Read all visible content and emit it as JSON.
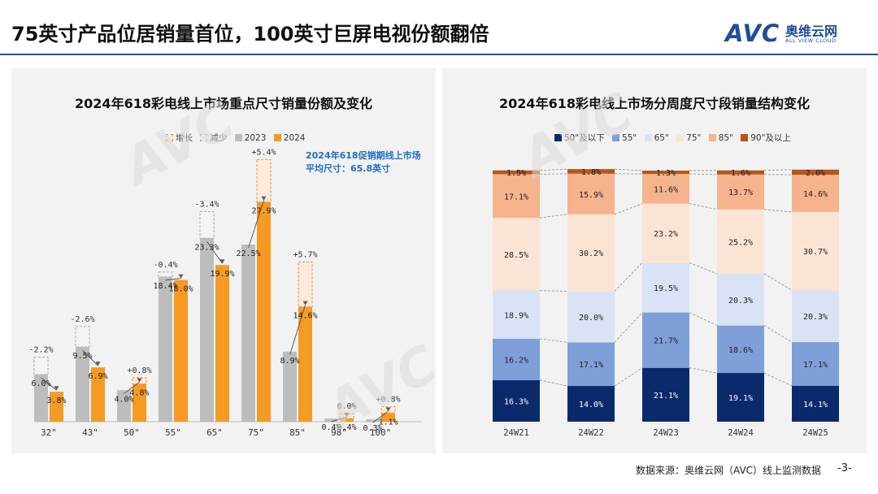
{
  "header": {
    "title": "75英寸产品位居销量首位，100英寸巨屏电视份额翻倍",
    "logo_text": "AVC",
    "logo_cn": "奥维云网",
    "logo_en": "ALL VIEW CLOUD"
  },
  "left_chart": {
    "title": "2024年618彩电线上市场重点尺寸销量份额及变化",
    "legend": [
      "增长",
      "减少",
      "2023",
      "2024"
    ],
    "note_line1": "2024年618促销期线上市场",
    "note_line2": "平均尺寸：65.8英寸"
  },
  "right_chart": {
    "title": "2024年618彩电线上市场分周度尺寸段销量结构变化",
    "legend": [
      "50\"及以下",
      "55\"",
      "65\"",
      "75\"",
      "85\"",
      "90\"及以上"
    ]
  },
  "colors": {
    "y2023": "#bdbdbd",
    "y2024": "#f59a23",
    "increase_border": "#f08a3a",
    "decrease_border": "#a6a6a6",
    "seg_50": "#0b2a6b",
    "seg_55": "#7e9fd8",
    "seg_65": "#dae3f5",
    "seg_75": "#fce4d4",
    "seg_85": "#f5b38e",
    "seg_90": "#b5561a"
  },
  "chart_data": [
    {
      "type": "bar",
      "categories": [
        "32\"",
        "43\"",
        "50\"",
        "55\"",
        "65\"",
        "75\"",
        "85\"",
        "98\"",
        "100\""
      ],
      "series": [
        {
          "name": "2023",
          "values": [
            6.0,
            9.5,
            4.0,
            18.4,
            23.3,
            22.5,
            8.9,
            0.4,
            0.3
          ],
          "labels": [
            "6.0%",
            "9.5%",
            "4.0%",
            "18.4%",
            "23.3%",
            "22.5%",
            "8.9%",
            "0.4%",
            "0.3%"
          ]
        },
        {
          "name": "2024",
          "values": [
            3.8,
            6.9,
            4.8,
            18.0,
            19.9,
            27.9,
            14.6,
            0.4,
            1.1
          ],
          "labels": [
            "3.8%",
            "6.9%",
            "4.8%",
            "18.0%",
            "19.9%",
            "27.9%",
            "14.6%",
            "0.4%",
            "1.1%"
          ]
        }
      ],
      "changes": [
        "-2.2%",
        "-2.6%",
        "+0.8%",
        "-0.4%",
        "-3.4%",
        "+5.4%",
        "+5.7%",
        "0.0%",
        "+0.8%"
      ],
      "ylim": [
        0,
        32
      ]
    },
    {
      "type": "bar",
      "stacked": true,
      "categories": [
        "24W21",
        "24W22",
        "24W23",
        "24W24",
        "24W25"
      ],
      "series": [
        {
          "name": "50\"及以下",
          "values": [
            16.3,
            14.0,
            21.1,
            19.1,
            14.1
          ]
        },
        {
          "name": "55\"",
          "values": [
            16.2,
            17.1,
            21.7,
            18.6,
            17.1
          ]
        },
        {
          "name": "65\"",
          "values": [
            18.9,
            20.0,
            19.5,
            20.3,
            20.3
          ]
        },
        {
          "name": "75\"",
          "values": [
            28.5,
            30.2,
            23.2,
            25.2,
            30.7
          ]
        },
        {
          "name": "85\"",
          "values": [
            17.1,
            15.9,
            11.6,
            13.7,
            14.6
          ]
        },
        {
          "name": "90\"及以上",
          "values": [
            1.5,
            1.8,
            1.3,
            1.6,
            2.0
          ]
        }
      ],
      "ylim": [
        0,
        100
      ]
    }
  ],
  "footer": {
    "source": "数据来源：奥维云网（AVC）线上监测数据",
    "page": "-3-"
  }
}
